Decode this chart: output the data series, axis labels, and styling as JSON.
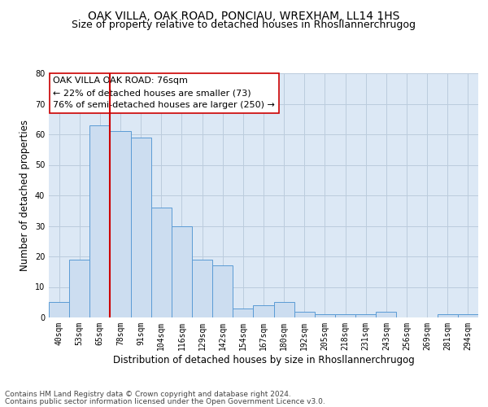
{
  "title": "OAK VILLA, OAK ROAD, PONCIAU, WREXHAM, LL14 1HS",
  "subtitle": "Size of property relative to detached houses in Rhosllannerchrugog",
  "xlabel": "Distribution of detached houses by size in Rhosllannerchrugog",
  "ylabel": "Number of detached properties",
  "annotation_line1": "OAK VILLA OAK ROAD: 76sqm",
  "annotation_line2": "← 22% of detached houses are smaller (73)",
  "annotation_line3": "76% of semi-detached houses are larger (250) →",
  "bar_labels": [
    "40sqm",
    "53sqm",
    "65sqm",
    "78sqm",
    "91sqm",
    "104sqm",
    "116sqm",
    "129sqm",
    "142sqm",
    "154sqm",
    "167sqm",
    "180sqm",
    "192sqm",
    "205sqm",
    "218sqm",
    "231sqm",
    "243sqm",
    "256sqm",
    "269sqm",
    "281sqm",
    "294sqm"
  ],
  "bar_values": [
    5,
    19,
    63,
    61,
    59,
    36,
    30,
    19,
    17,
    3,
    4,
    5,
    2,
    1,
    1,
    1,
    2,
    0,
    0,
    1,
    1
  ],
  "bar_color": "#ccddf0",
  "bar_edge_color": "#5b9bd5",
  "vline_x": 2.5,
  "vline_color": "#cc0000",
  "ylim": [
    0,
    80
  ],
  "yticks": [
    0,
    10,
    20,
    30,
    40,
    50,
    60,
    70,
    80
  ],
  "grid_color": "#bbccdd",
  "bg_color": "#dce8f5",
  "footer_line1": "Contains HM Land Registry data © Crown copyright and database right 2024.",
  "footer_line2": "Contains public sector information licensed under the Open Government Licence v3.0.",
  "title_fontsize": 10,
  "subtitle_fontsize": 9,
  "annotation_fontsize": 8,
  "xlabel_fontsize": 8.5,
  "ylabel_fontsize": 8.5,
  "footer_fontsize": 6.5,
  "tick_fontsize": 7
}
